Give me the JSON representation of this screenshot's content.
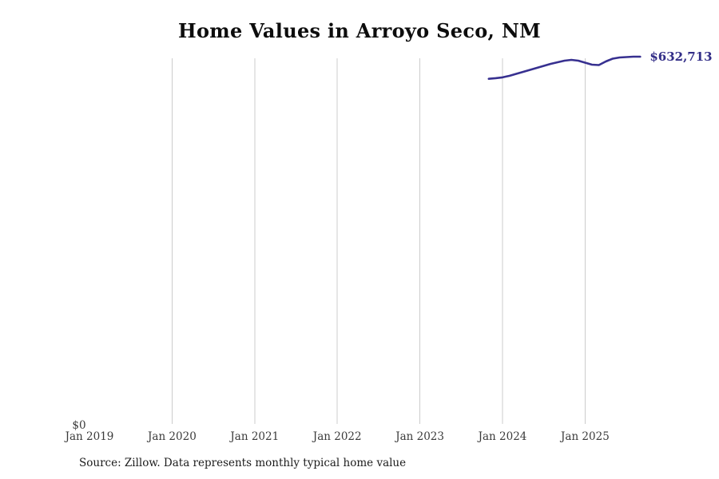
{
  "page": {
    "title": "Home Values in Arroyo Seco, NM"
  },
  "source": {
    "note": "Source: Zillow. Data represents monthly typical home value"
  },
  "chart_data": {
    "type": "line",
    "title": "Home Values in Arroyo Seco, NM",
    "xlabel": "",
    "ylabel": "",
    "ylim": [
      0,
      637000
    ],
    "grid": "vertical-only",
    "legend": "none",
    "y_zero_label": "$0",
    "end_label": "$632,713",
    "source_note": "Source: Zillow. Data represents monthly typical home value",
    "colors": {
      "line": "#373090",
      "end_label": "#322d87",
      "grid": "#cccccc",
      "tick_text": "#3a3a3a",
      "title_text": "#0d0d0d",
      "source_text": "#1c1c1c"
    },
    "x_ticks": [
      {
        "label": "Jan 2019",
        "gridline": false
      },
      {
        "label": "Jan 2020",
        "gridline": true
      },
      {
        "label": "Jan 2021",
        "gridline": true
      },
      {
        "label": "Jan 2022",
        "gridline": true
      },
      {
        "label": "Jan 2023",
        "gridline": true
      },
      {
        "label": "Jan 2024",
        "gridline": true
      },
      {
        "label": "Jan 2025",
        "gridline": true
      }
    ],
    "series": [
      {
        "name": "Monthly typical home value",
        "points": [
          [
            "Nov 2023",
            594500
          ],
          [
            "Dec 2023",
            595600
          ],
          [
            "Jan 2024",
            597000
          ],
          [
            "Feb 2024",
            599600
          ],
          [
            "Mar 2024",
            603100
          ],
          [
            "Apr 2024",
            606500
          ],
          [
            "May 2024",
            610000
          ],
          [
            "Jun 2024",
            613400
          ],
          [
            "Jul 2024",
            616900
          ],
          [
            "Aug 2024",
            620300
          ],
          [
            "Sep 2024",
            623100
          ],
          [
            "Oct 2024",
            625800
          ],
          [
            "Nov 2024",
            627200
          ],
          [
            "Dec 2024",
            625800
          ],
          [
            "Jan 2025",
            622400
          ],
          [
            "Feb 2025",
            618900
          ],
          [
            "Mar 2025",
            618200
          ],
          [
            "Apr 2025",
            624400
          ],
          [
            "May 2025",
            629300
          ],
          [
            "Jun 2025",
            631300
          ],
          [
            "Jul 2025",
            632000
          ],
          [
            "Aug 2025",
            632700
          ],
          [
            "Sep 2025",
            632713
          ]
        ]
      }
    ]
  }
}
